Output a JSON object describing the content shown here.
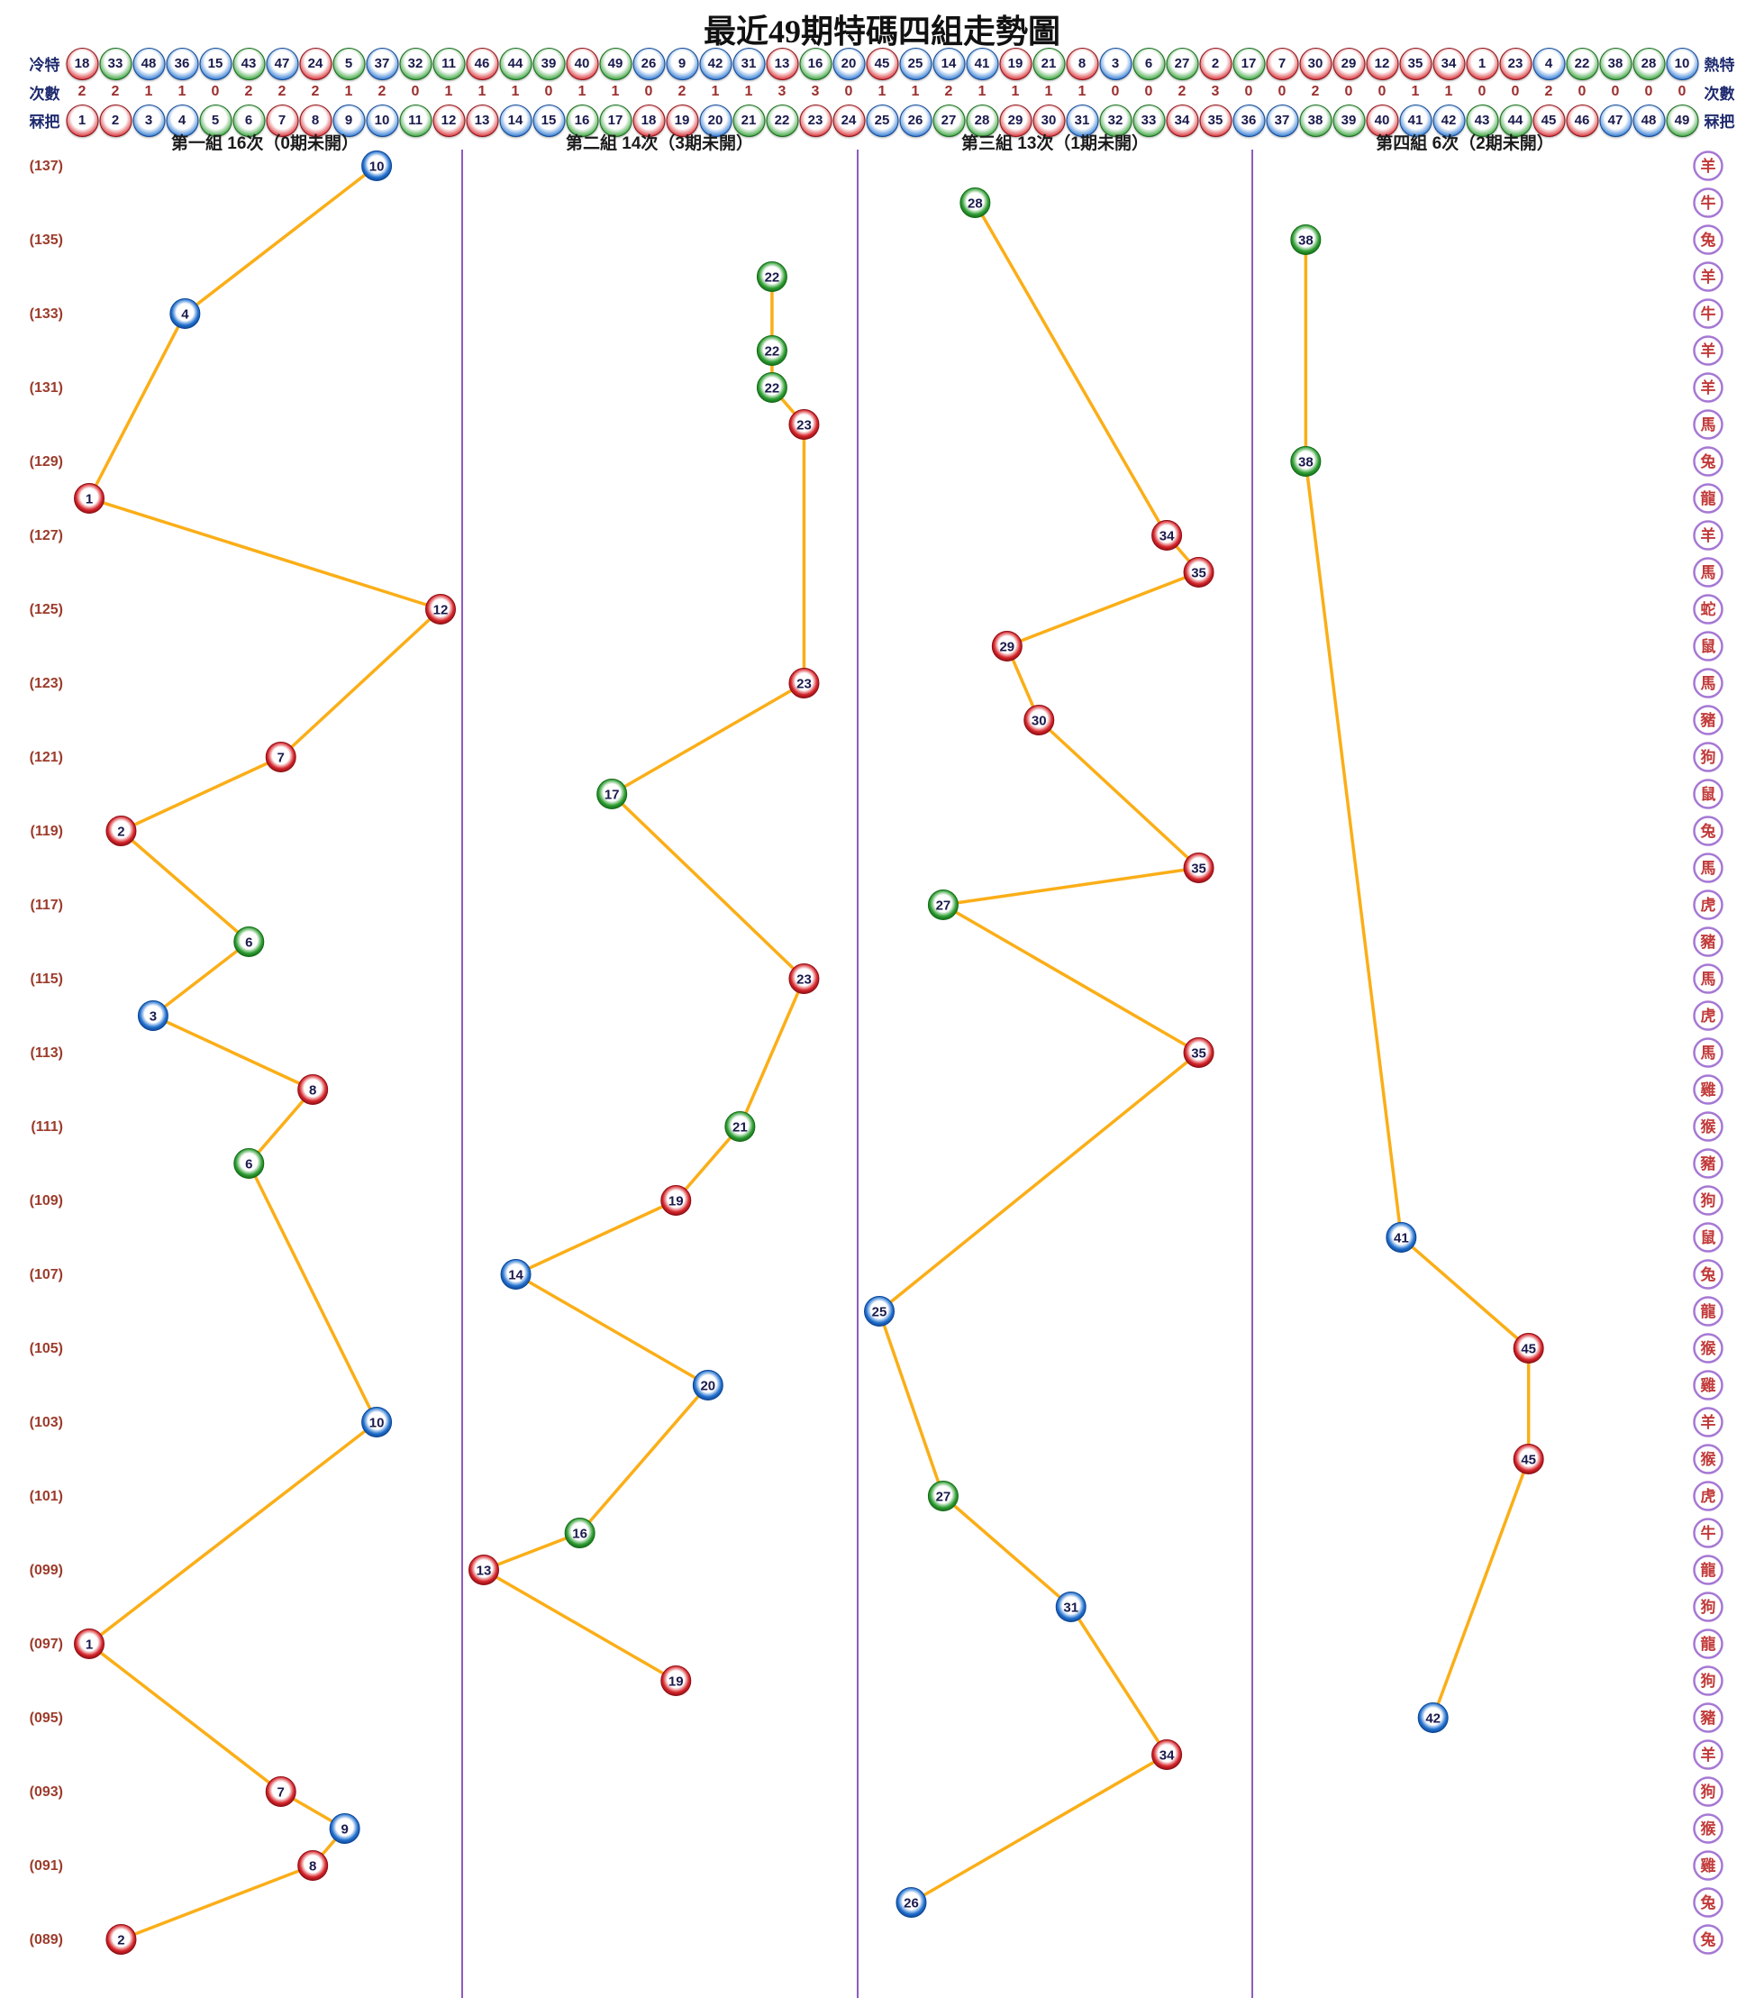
{
  "title": "最近49期特碼四組走勢圖",
  "header": {
    "cold_label": "冷特",
    "hot_label": "熱特",
    "counts_label": "次數",
    "numbers_label": "冧把",
    "cold_to_hot": [
      18,
      33,
      48,
      36,
      15,
      43,
      47,
      24,
      5,
      37,
      32,
      11,
      46,
      44,
      39,
      40,
      49,
      26,
      9,
      42,
      31,
      13,
      16,
      20,
      45,
      25,
      14,
      41,
      19,
      21,
      8,
      3,
      6,
      27,
      2,
      17,
      7,
      30,
      29,
      12,
      35,
      34,
      1,
      23,
      4,
      22,
      38,
      28,
      10
    ],
    "counts_by_number": [
      2,
      2,
      1,
      1,
      0,
      2,
      2,
      2,
      1,
      2,
      0,
      1,
      1,
      1,
      0,
      1,
      1,
      0,
      2,
      1,
      1,
      3,
      3,
      0,
      1,
      1,
      2,
      1,
      1,
      1,
      1,
      0,
      0,
      2,
      3,
      0,
      0,
      2,
      0,
      0,
      1,
      1,
      0,
      0,
      2,
      0,
      0,
      0,
      0
    ],
    "numbers": [
      1,
      2,
      3,
      4,
      5,
      6,
      7,
      8,
      9,
      10,
      11,
      12,
      13,
      14,
      15,
      16,
      17,
      18,
      19,
      20,
      21,
      22,
      23,
      24,
      25,
      26,
      27,
      28,
      29,
      30,
      31,
      32,
      33,
      34,
      35,
      36,
      37,
      38,
      39,
      40,
      41,
      42,
      43,
      44,
      45,
      46,
      47,
      48,
      49
    ]
  },
  "ball_colors": {
    "red": [
      1,
      2,
      7,
      8,
      12,
      13,
      18,
      19,
      23,
      24,
      29,
      30,
      34,
      35,
      40,
      45,
      46
    ],
    "blue": [
      3,
      4,
      9,
      10,
      14,
      15,
      20,
      25,
      26,
      31,
      36,
      37,
      41,
      42,
      47,
      48
    ],
    "green": [
      5,
      6,
      11,
      16,
      17,
      21,
      22,
      27,
      28,
      32,
      33,
      38,
      39,
      43,
      44,
      49
    ]
  },
  "palette": {
    "red": "#d6262c",
    "red_dark": "#8e0f14",
    "blue": "#2372d0",
    "blue_dark": "#0e4694",
    "green": "#2f9e33",
    "green_dark": "#146b18",
    "line": "#fbae17",
    "separator": "#8e5bc4",
    "zodiac_ring": "#a678d4",
    "zodiac_text": "#c23a3a",
    "period_label": "#9c3b2b",
    "ball_number": "#1a1a4d",
    "header_label": "#1e2a6e",
    "counts_text": "#9c2f2f"
  },
  "chart_data": {
    "type": "scatter",
    "title": "最近49期特碼四組走勢圖",
    "x_encoding": "number 1-49 split into 4 group columns",
    "y_encoding": "period 137 (top) to 089 (bottom)",
    "groups": [
      {
        "title": "第一組 16次（0期未開）",
        "range": [
          1,
          12
        ]
      },
      {
        "title": "第二組 14次（3期未開）",
        "range": [
          13,
          24
        ]
      },
      {
        "title": "第三組 13次（1期未開）",
        "range": [
          25,
          36
        ]
      },
      {
        "title": "第四組 6次（2期未開）",
        "range": [
          37,
          49
        ]
      }
    ],
    "rows": [
      {
        "p": 137,
        "label": "(137)",
        "g": 1,
        "n": 10,
        "z": "羊"
      },
      {
        "p": 136,
        "g": 3,
        "n": 28,
        "z": "牛"
      },
      {
        "p": 135,
        "label": "(135)",
        "g": 4,
        "n": 38,
        "z": "兔"
      },
      {
        "p": 134,
        "g": 2,
        "n": 22,
        "z": "羊"
      },
      {
        "p": 133,
        "label": "(133)",
        "g": 1,
        "n": 4,
        "z": "牛"
      },
      {
        "p": 132,
        "g": 2,
        "n": 22,
        "z": "羊"
      },
      {
        "p": 131,
        "label": "(131)",
        "g": 2,
        "n": 22,
        "z": "羊"
      },
      {
        "p": 130,
        "g": 2,
        "n": 23,
        "z": "馬"
      },
      {
        "p": 129,
        "label": "(129)",
        "g": 4,
        "n": 38,
        "z": "兔"
      },
      {
        "p": 128,
        "g": 1,
        "n": 1,
        "z": "龍"
      },
      {
        "p": 127,
        "label": "(127)",
        "g": 3,
        "n": 34,
        "z": "羊"
      },
      {
        "p": 126,
        "g": 3,
        "n": 35,
        "z": "馬"
      },
      {
        "p": 125,
        "label": "(125)",
        "g": 1,
        "n": 12,
        "z": "蛇"
      },
      {
        "p": 124,
        "g": 3,
        "n": 29,
        "z": "鼠"
      },
      {
        "p": 123,
        "label": "(123)",
        "g": 2,
        "n": 23,
        "z": "馬"
      },
      {
        "p": 122,
        "g": 3,
        "n": 30,
        "z": "豬"
      },
      {
        "p": 121,
        "label": "(121)",
        "g": 1,
        "n": 7,
        "z": "狗"
      },
      {
        "p": 120,
        "g": 2,
        "n": 17,
        "z": "鼠"
      },
      {
        "p": 119,
        "label": "(119)",
        "g": 1,
        "n": 2,
        "z": "兔"
      },
      {
        "p": 118,
        "g": 3,
        "n": 35,
        "z": "馬"
      },
      {
        "p": 117,
        "label": "(117)",
        "g": 3,
        "n": 27,
        "z": "虎"
      },
      {
        "p": 116,
        "g": 1,
        "n": 6,
        "z": "豬"
      },
      {
        "p": 115,
        "label": "(115)",
        "g": 2,
        "n": 23,
        "z": "馬"
      },
      {
        "p": 114,
        "g": 1,
        "n": 3,
        "z": "虎"
      },
      {
        "p": 113,
        "label": "(113)",
        "g": 3,
        "n": 35,
        "z": "馬"
      },
      {
        "p": 112,
        "g": 1,
        "n": 8,
        "z": "雞"
      },
      {
        "p": 111,
        "label": "(111)",
        "g": 2,
        "n": 21,
        "z": "猴"
      },
      {
        "p": 110,
        "g": 1,
        "n": 6,
        "z": "豬"
      },
      {
        "p": 109,
        "label": "(109)",
        "g": 2,
        "n": 19,
        "z": "狗"
      },
      {
        "p": 108,
        "g": 4,
        "n": 41,
        "z": "鼠"
      },
      {
        "p": 107,
        "label": "(107)",
        "g": 2,
        "n": 14,
        "z": "兔"
      },
      {
        "p": 106,
        "g": 3,
        "n": 25,
        "z": "龍"
      },
      {
        "p": 105,
        "label": "(105)",
        "g": 4,
        "n": 45,
        "z": "猴"
      },
      {
        "p": 104,
        "g": 2,
        "n": 20,
        "z": "雞"
      },
      {
        "p": 103,
        "label": "(103)",
        "g": 1,
        "n": 10,
        "z": "羊"
      },
      {
        "p": 102,
        "g": 4,
        "n": 45,
        "z": "猴"
      },
      {
        "p": 101,
        "label": "(101)",
        "g": 3,
        "n": 27,
        "z": "虎"
      },
      {
        "p": 100,
        "g": 2,
        "n": 16,
        "z": "牛"
      },
      {
        "p": 99,
        "label": "(099)",
        "g": 2,
        "n": 13,
        "z": "龍"
      },
      {
        "p": 98,
        "g": 3,
        "n": 31,
        "z": "狗"
      },
      {
        "p": 97,
        "label": "(097)",
        "g": 1,
        "n": 1,
        "z": "龍"
      },
      {
        "p": 96,
        "g": 2,
        "n": 19,
        "z": "狗"
      },
      {
        "p": 95,
        "label": "(095)",
        "g": 4,
        "n": 42,
        "z": "豬"
      },
      {
        "p": 94,
        "g": 3,
        "n": 34,
        "z": "羊"
      },
      {
        "p": 93,
        "label": "(093)",
        "g": 1,
        "n": 7,
        "z": "狗"
      },
      {
        "p": 92,
        "g": 1,
        "n": 9,
        "z": "猴"
      },
      {
        "p": 91,
        "label": "(091)",
        "g": 1,
        "n": 8,
        "z": "雞"
      },
      {
        "p": 90,
        "g": 3,
        "n": 26,
        "z": "兔"
      },
      {
        "p": 89,
        "label": "(089)",
        "g": 1,
        "n": 2,
        "z": "兔"
      }
    ]
  }
}
